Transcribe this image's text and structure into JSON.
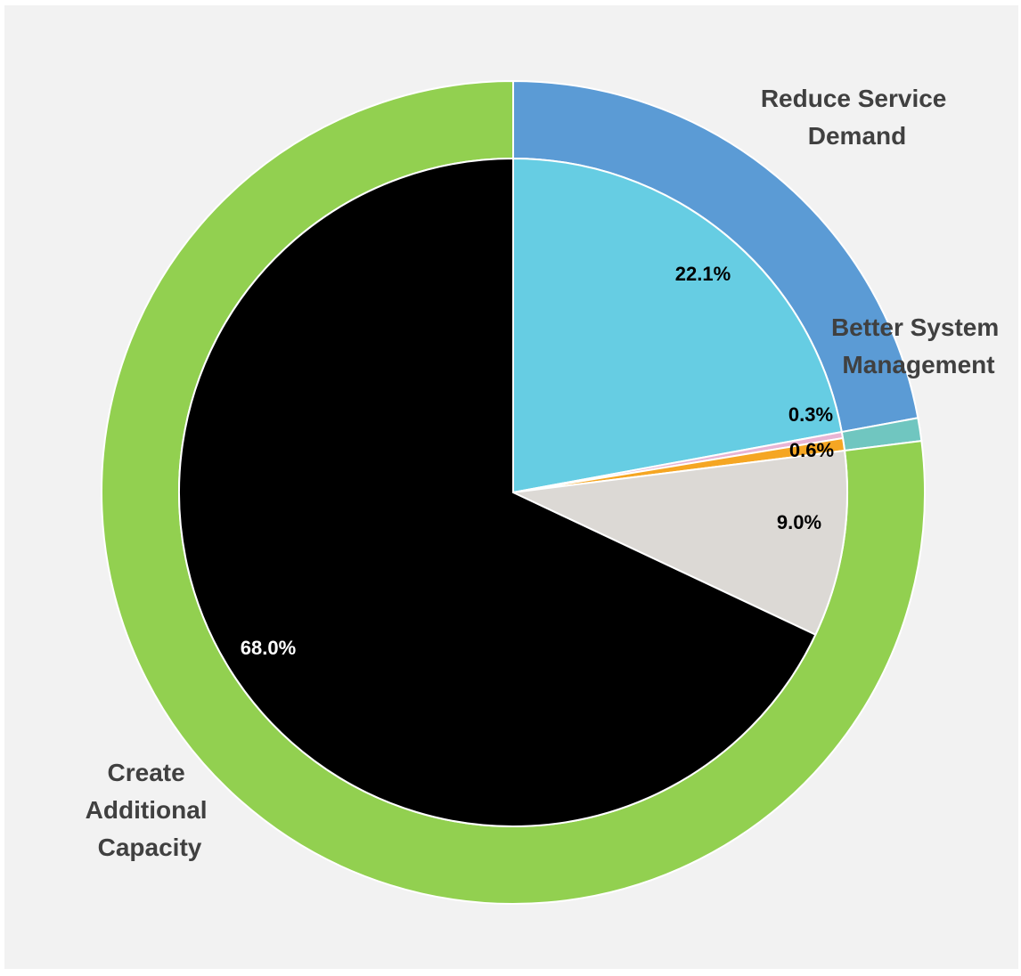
{
  "chart_data": {
    "type": "pie",
    "outer_ring": {
      "categories": [
        "Reduce Service Demand",
        "Better System Management",
        "Create Additional Capacity"
      ],
      "labels": [
        [
          "Reduce Service",
          "Demand"
        ],
        [
          "Better System",
          "Management"
        ],
        [
          "Create",
          "Additional",
          "Capacity"
        ]
      ],
      "values": [
        22.1,
        0.9,
        77.0
      ],
      "colors": [
        "#5b9bd5",
        "#70c6c0",
        "#92d050"
      ]
    },
    "inner_pie": {
      "values": [
        22.1,
        0.3,
        0.6,
        9.0,
        68.0
      ],
      "labels": [
        "22.1%",
        "0.3%",
        "0.6%",
        "9.0%",
        "68.0%"
      ],
      "colors": [
        "#66cde3",
        "#e8b4d4",
        "#f5a623",
        "#dcd9d5",
        "#000000"
      ],
      "label_colors": [
        "#000000",
        "#000000",
        "#000000",
        "#000000",
        "#ffffff"
      ]
    }
  }
}
